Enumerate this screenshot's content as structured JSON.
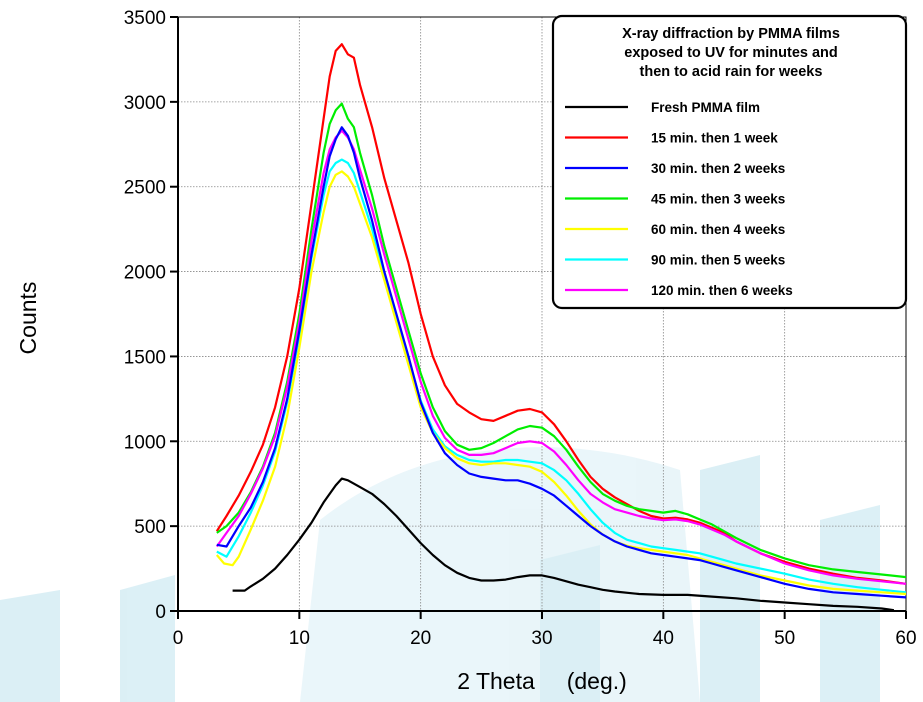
{
  "chart_data": {
    "type": "line",
    "title": "",
    "xlabel": "2 Theta     (deg.)",
    "ylabel": "Counts",
    "xlim": [
      0,
      60
    ],
    "ylim": [
      0,
      3500
    ],
    "xticks": [
      0,
      10,
      20,
      30,
      40,
      50,
      60
    ],
    "yticks": [
      0,
      500,
      1000,
      1500,
      2000,
      2500,
      3000,
      3500
    ],
    "grid": true,
    "legend": {
      "placement": "top-right",
      "title": [
        "X-ray diffraction by PMMA films",
        "exposed to UV for minutes and",
        "then to acid rain for weeks"
      ]
    },
    "series": [
      {
        "name": "Fresh PMMA film",
        "color": "#000000",
        "x": [
          4.5,
          5.5,
          6,
          7,
          8,
          9,
          10,
          11,
          12,
          13,
          13.5,
          14,
          15,
          16,
          17,
          18,
          19,
          20,
          21,
          22,
          23,
          24,
          25,
          26,
          27,
          28,
          29,
          30,
          31,
          32,
          33,
          34,
          35,
          36,
          38,
          40,
          42,
          44,
          46,
          48,
          50,
          52,
          54,
          56,
          58,
          59
        ],
        "y": [
          120,
          120,
          145,
          190,
          250,
          330,
          420,
          520,
          640,
          740,
          780,
          770,
          730,
          690,
          630,
          560,
          480,
          400,
          330,
          270,
          225,
          195,
          180,
          180,
          185,
          200,
          210,
          210,
          195,
          175,
          155,
          140,
          125,
          115,
          100,
          95,
          95,
          85,
          75,
          60,
          50,
          40,
          30,
          25,
          15,
          5
        ]
      },
      {
        "name": "15 min. then 1 week",
        "color": "#ff0000",
        "x": [
          3.2,
          4,
          5,
          6,
          7,
          8,
          9,
          10,
          11,
          12,
          12.5,
          13,
          13.5,
          14,
          14.5,
          15,
          16,
          17,
          18,
          19,
          20,
          21,
          22,
          23,
          24,
          25,
          26,
          27,
          28,
          29,
          30,
          31,
          32,
          33,
          34,
          35,
          36,
          37,
          38,
          39,
          40,
          41,
          42,
          43,
          44,
          45,
          46,
          48,
          50,
          52,
          54,
          56,
          58,
          60
        ],
        "y": [
          470,
          560,
          680,
          820,
          980,
          1200,
          1500,
          1900,
          2400,
          2900,
          3150,
          3300,
          3340,
          3280,
          3260,
          3100,
          2850,
          2550,
          2300,
          2050,
          1750,
          1500,
          1330,
          1220,
          1170,
          1130,
          1120,
          1150,
          1180,
          1190,
          1170,
          1100,
          1000,
          890,
          790,
          720,
          670,
          630,
          590,
          560,
          545,
          550,
          540,
          520,
          490,
          460,
          410,
          340,
          290,
          250,
          220,
          195,
          180,
          160
        ]
      },
      {
        "name": "30 min. then 2 weeks",
        "color": "#0000ff",
        "x": [
          3.2,
          4,
          5,
          6,
          7,
          8,
          9,
          10,
          11,
          12,
          12.5,
          13,
          13.5,
          14,
          14.5,
          15,
          16,
          17,
          18,
          19,
          20,
          21,
          22,
          23,
          24,
          25,
          26,
          27,
          28,
          29,
          30,
          31,
          32,
          33,
          34,
          35,
          36,
          37,
          38,
          39,
          40,
          41,
          42,
          43,
          44,
          45,
          46,
          48,
          50,
          52,
          54,
          56,
          58,
          60
        ],
        "y": [
          390,
          380,
          500,
          610,
          760,
          960,
          1250,
          1650,
          2100,
          2500,
          2680,
          2780,
          2850,
          2800,
          2700,
          2550,
          2300,
          2000,
          1750,
          1500,
          1230,
          1050,
          930,
          860,
          810,
          790,
          780,
          770,
          770,
          750,
          720,
          680,
          620,
          560,
          500,
          450,
          410,
          380,
          360,
          340,
          330,
          320,
          310,
          300,
          280,
          260,
          240,
          200,
          160,
          130,
          110,
          100,
          90,
          80
        ]
      },
      {
        "name": "45 min. then 3 weeks",
        "color": "#00ee00",
        "x": [
          3.2,
          4,
          5,
          6,
          7,
          8,
          9,
          10,
          11,
          12,
          12.5,
          13,
          13.5,
          14,
          14.5,
          15,
          16,
          17,
          18,
          19,
          20,
          21,
          22,
          23,
          24,
          25,
          26,
          27,
          28,
          29,
          30,
          31,
          32,
          33,
          34,
          35,
          36,
          37,
          38,
          39,
          40,
          41,
          42,
          43,
          44,
          45,
          46,
          48,
          50,
          52,
          54,
          56,
          58,
          60
        ],
        "y": [
          460,
          500,
          580,
          700,
          850,
          1050,
          1350,
          1750,
          2250,
          2700,
          2870,
          2950,
          2990,
          2900,
          2850,
          2700,
          2450,
          2150,
          1900,
          1650,
          1400,
          1200,
          1060,
          980,
          950,
          960,
          990,
          1030,
          1070,
          1090,
          1080,
          1030,
          950,
          850,
          760,
          690,
          650,
          620,
          600,
          590,
          580,
          590,
          570,
          540,
          510,
          470,
          430,
          360,
          310,
          270,
          245,
          230,
          215,
          200
        ]
      },
      {
        "name": "60 min. then 4 weeks",
        "color": "#ffff00",
        "x": [
          3.2,
          3.8,
          4.5,
          5,
          6,
          7,
          8,
          9,
          10,
          11,
          12,
          12.5,
          13,
          13.5,
          14,
          14.5,
          15,
          16,
          17,
          18,
          19,
          20,
          21,
          22,
          23,
          24,
          25,
          26,
          27,
          28,
          29,
          30,
          31,
          32,
          33,
          34,
          35,
          36,
          37,
          38,
          39,
          40,
          41,
          42,
          43,
          44,
          45,
          46,
          48,
          50,
          52,
          54,
          56,
          58,
          60
        ],
        "y": [
          330,
          280,
          270,
          320,
          480,
          650,
          850,
          1150,
          1550,
          2000,
          2350,
          2500,
          2570,
          2590,
          2560,
          2500,
          2400,
          2200,
          1950,
          1700,
          1450,
          1200,
          1050,
          960,
          900,
          870,
          860,
          870,
          870,
          860,
          850,
          820,
          760,
          680,
          590,
          510,
          450,
          410,
          385,
          370,
          360,
          350,
          340,
          330,
          310,
          290,
          270,
          250,
          210,
          180,
          150,
          130,
          120,
          110,
          100
        ]
      },
      {
        "name": "90 min. then 5 weeks",
        "color": "#00ffff",
        "x": [
          3.2,
          4,
          5,
          6,
          7,
          8,
          9,
          10,
          11,
          12,
          12.5,
          13,
          13.5,
          14,
          14.5,
          15,
          16,
          17,
          18,
          19,
          20,
          21,
          22,
          23,
          24,
          25,
          26,
          27,
          28,
          29,
          30,
          31,
          32,
          33,
          34,
          35,
          36,
          37,
          38,
          39,
          40,
          41,
          42,
          43,
          44,
          45,
          46,
          48,
          50,
          52,
          54,
          56,
          58,
          60
        ],
        "y": [
          350,
          320,
          440,
          580,
          740,
          940,
          1230,
          1620,
          2080,
          2450,
          2590,
          2640,
          2660,
          2640,
          2580,
          2470,
          2250,
          1980,
          1730,
          1480,
          1240,
          1070,
          970,
          920,
          890,
          880,
          880,
          890,
          890,
          880,
          870,
          830,
          770,
          690,
          600,
          520,
          460,
          420,
          400,
          380,
          370,
          360,
          350,
          340,
          320,
          300,
          280,
          250,
          220,
          185,
          160,
          140,
          125,
          110
        ]
      },
      {
        "name": "120 min. then 6 weeks",
        "color": "#ff00ff",
        "x": [
          3.2,
          4,
          5,
          6,
          7,
          8,
          9,
          10,
          11,
          12,
          12.5,
          13,
          13.5,
          14,
          14.5,
          15,
          16,
          17,
          18,
          19,
          20,
          21,
          22,
          23,
          24,
          25,
          26,
          27,
          28,
          29,
          30,
          31,
          32,
          33,
          34,
          35,
          36,
          37,
          38,
          39,
          40,
          41,
          42,
          43,
          44,
          45,
          46,
          48,
          50,
          52,
          54,
          56,
          58,
          60
        ],
        "y": [
          380,
          460,
          560,
          690,
          840,
          1030,
          1320,
          1700,
          2180,
          2580,
          2720,
          2790,
          2830,
          2790,
          2720,
          2600,
          2370,
          2100,
          1850,
          1600,
          1350,
          1150,
          1020,
          950,
          920,
          920,
          930,
          960,
          990,
          1000,
          990,
          940,
          860,
          770,
          690,
          640,
          600,
          580,
          560,
          545,
          535,
          540,
          530,
          510,
          480,
          450,
          410,
          340,
          280,
          240,
          210,
          190,
          175,
          160
        ]
      }
    ]
  }
}
